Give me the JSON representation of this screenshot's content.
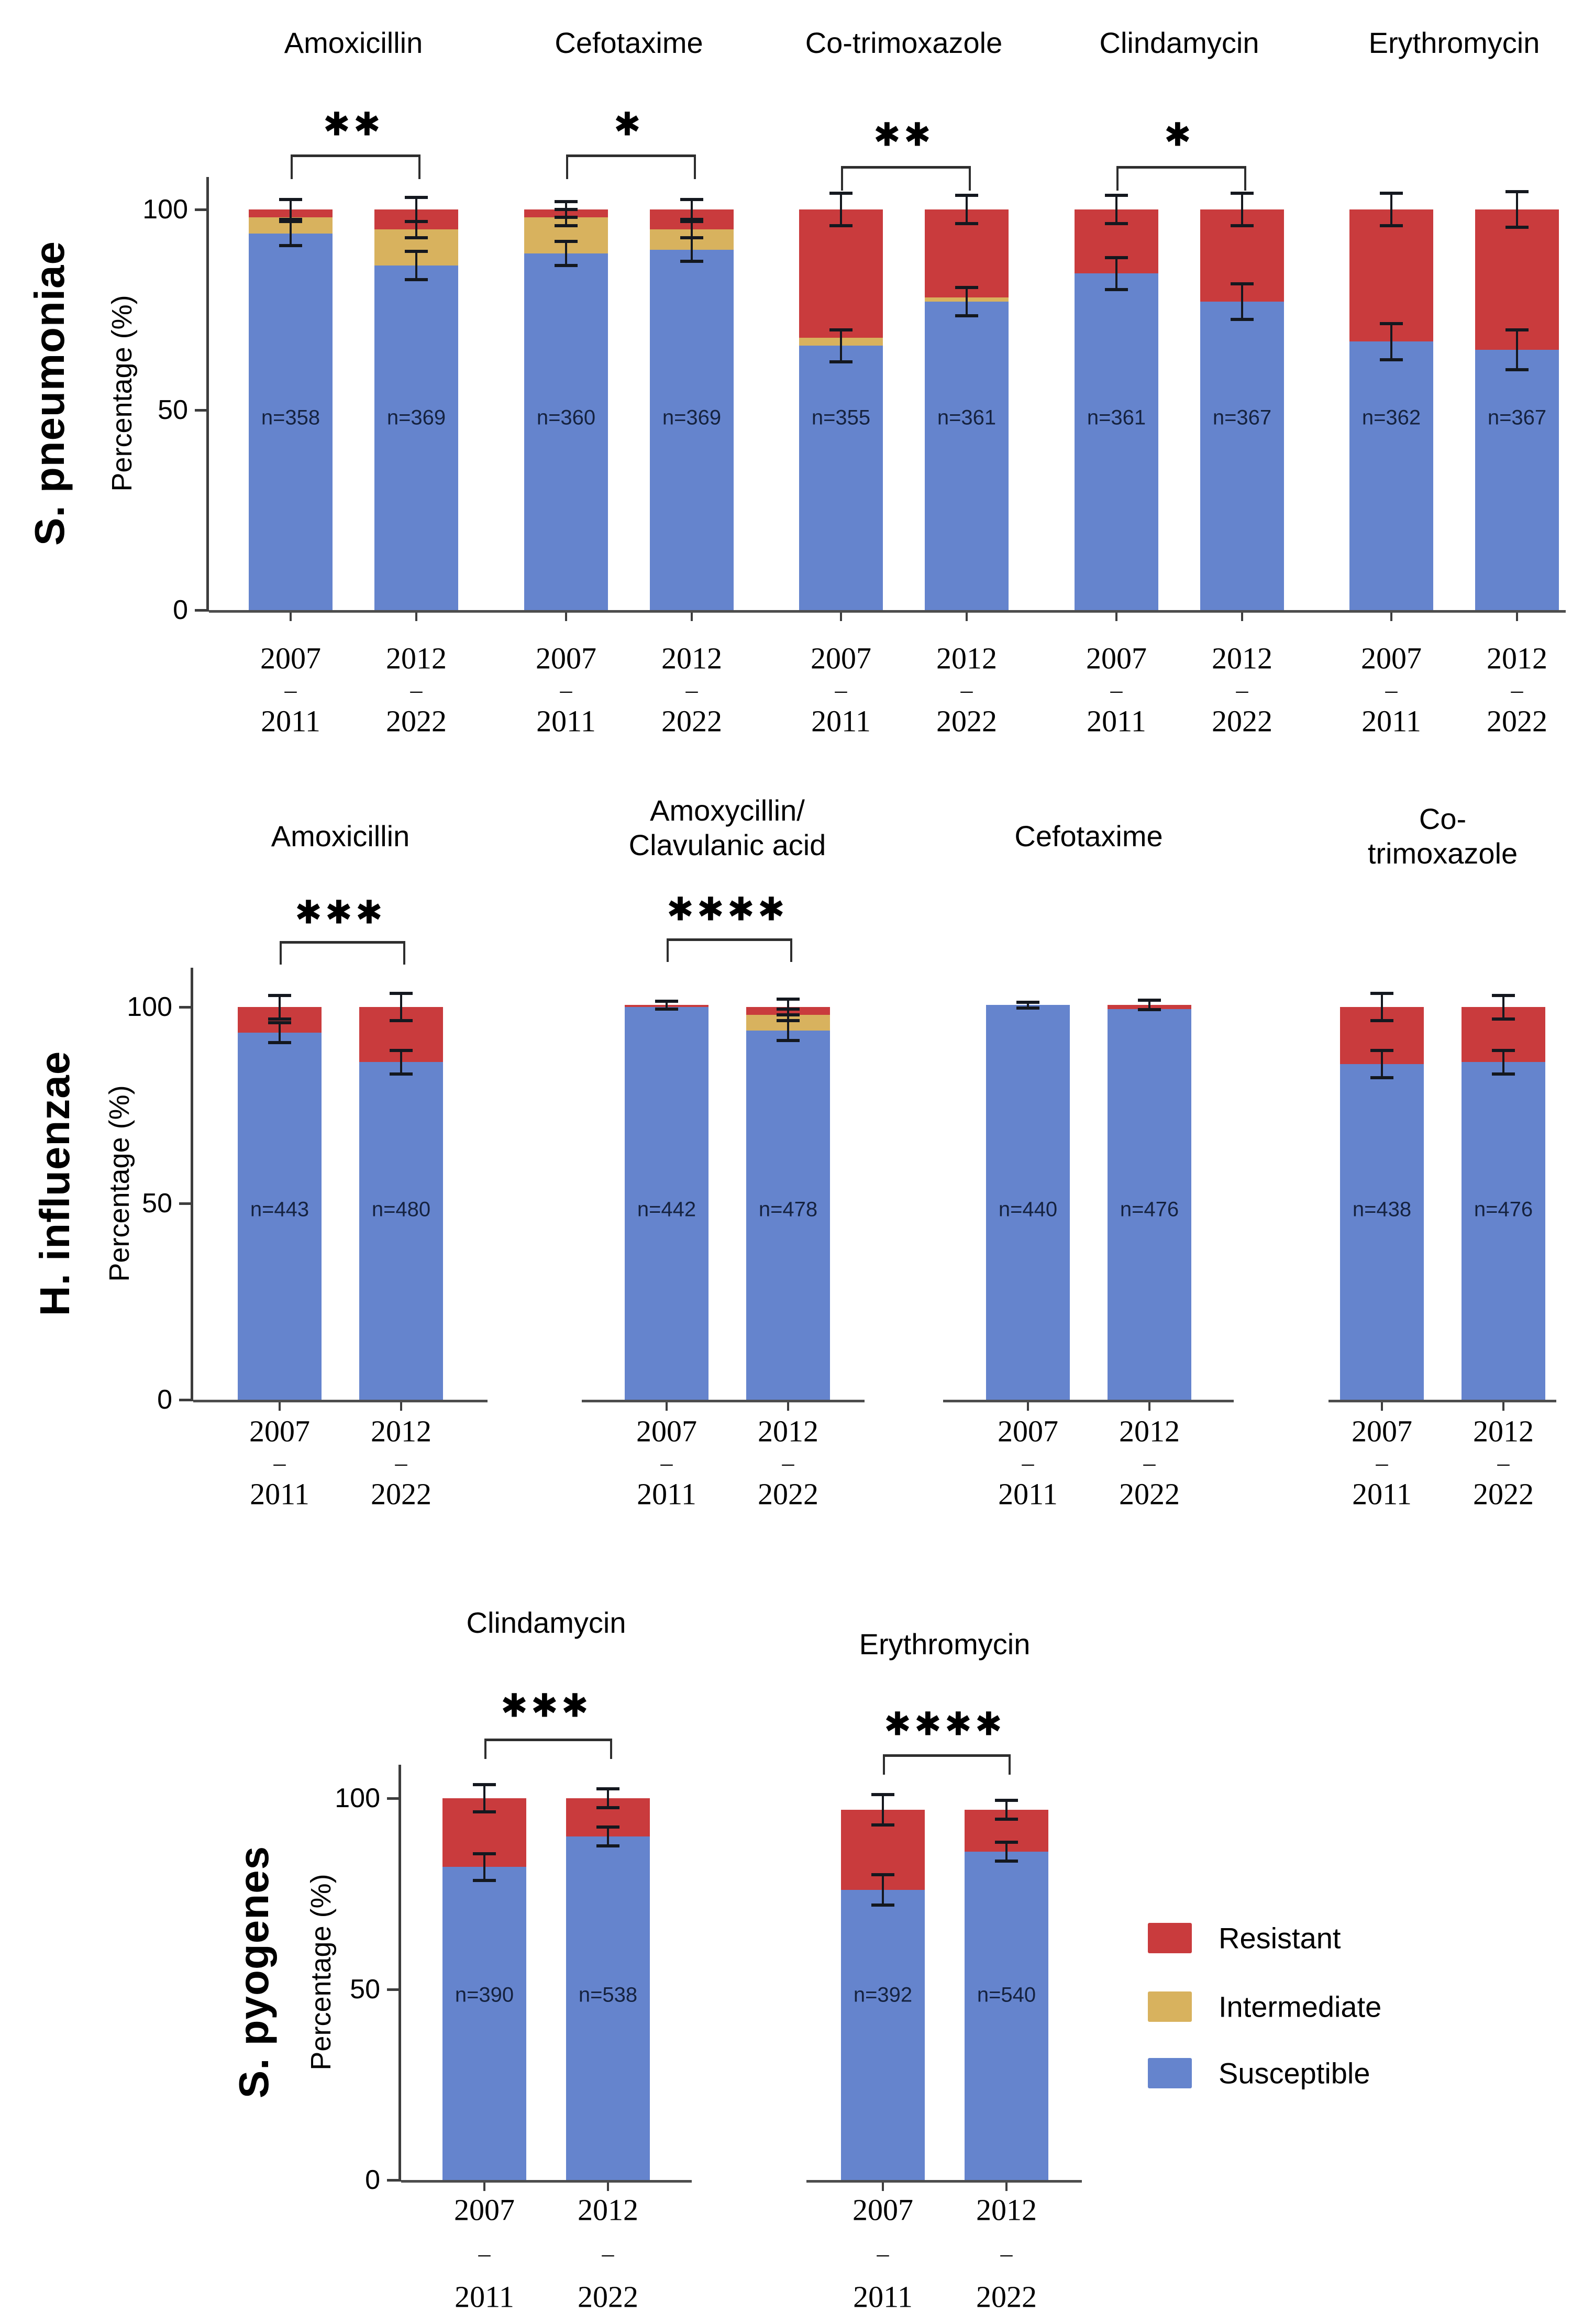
{
  "legend": {
    "items": [
      {
        "label": "Resistant",
        "color": "#c93b3d"
      },
      {
        "label": "Intermediate",
        "color": "#d8b25e"
      },
      {
        "label": "Susceptible",
        "color": "#6584cd"
      }
    ]
  },
  "colors": {
    "susceptible": "#6584cd",
    "intermediate": "#d8b25e",
    "resistant": "#c93b3d",
    "axis": "#3d3d3d",
    "error_bar": "#14181f",
    "n_label": "#15223f"
  },
  "chart_data": [
    {
      "type": "bar",
      "stacked": true,
      "species": "S. pneumoniae",
      "ylabel": "Percentage (%)",
      "yticks": [
        100,
        50,
        0
      ],
      "ylim": [
        0,
        112
      ],
      "grid": false,
      "legend_position": "none",
      "groups": [
        {
          "antibiotic": "Amoxicillin",
          "significance": "**",
          "bars": [
            {
              "period": [
                "2007",
                "–",
                "2011"
              ],
              "n_label": "n=358",
              "susceptible": 94,
              "intermediate": 4,
              "resistant": 2,
              "err_susceptible": 3,
              "err_top": 2.5
            },
            {
              "period": [
                "2012",
                "–",
                "2022"
              ],
              "n_label": "n=369",
              "susceptible": 86,
              "intermediate": 9,
              "resistant": 5,
              "err_susceptible": 3.5,
              "err_intermediate": 2,
              "err_top": 3
            }
          ]
        },
        {
          "antibiotic": "Cefotaxime",
          "significance": "*",
          "bars": [
            {
              "period": [
                "2007",
                "–",
                "2011"
              ],
              "n_label": "n=360",
              "susceptible": 89,
              "intermediate": 9,
              "resistant": 2,
              "err_susceptible": 3,
              "err_intermediate": 2,
              "err_top": 2
            },
            {
              "period": [
                "2012",
                "–",
                "2022"
              ],
              "n_label": "n=369",
              "susceptible": 90,
              "intermediate": 5,
              "resistant": 5,
              "err_susceptible": 3,
              "err_intermediate": 2,
              "err_top": 2.5
            }
          ]
        },
        {
          "antibiotic": "Co-trimoxazole",
          "significance": "**",
          "bars": [
            {
              "period": [
                "2007",
                "–",
                "2011"
              ],
              "n_label": "n=355",
              "susceptible": 66,
              "intermediate": 2,
              "resistant": 32,
              "err_susceptible": 4,
              "err_top": 4
            },
            {
              "period": [
                "2012",
                "–",
                "2022"
              ],
              "n_label": "n=361",
              "susceptible": 77,
              "intermediate": 1,
              "resistant": 22,
              "err_susceptible": 3.5,
              "err_top": 3.5
            }
          ]
        },
        {
          "antibiotic": "Clindamycin",
          "significance": "*",
          "bars": [
            {
              "period": [
                "2007",
                "–",
                "2011"
              ],
              "n_label": "n=361",
              "susceptible": 84,
              "intermediate": 0,
              "resistant": 16,
              "err_susceptible": 4,
              "err_top": 3.5
            },
            {
              "period": [
                "2012",
                "–",
                "2022"
              ],
              "n_label": "n=367",
              "susceptible": 77,
              "intermediate": 0,
              "resistant": 23,
              "err_susceptible": 4.5,
              "err_top": 4
            }
          ]
        },
        {
          "antibiotic": "Erythromycin",
          "significance": null,
          "bars": [
            {
              "period": [
                "2007",
                "–",
                "2011"
              ],
              "n_label": "n=362",
              "susceptible": 67,
              "intermediate": 0,
              "resistant": 33,
              "err_susceptible": 4.5,
              "err_top": 4
            },
            {
              "period": [
                "2012",
                "–",
                "2022"
              ],
              "n_label": "n=367",
              "susceptible": 65,
              "intermediate": 0,
              "resistant": 35,
              "err_susceptible": 5,
              "err_top": 4.5
            }
          ]
        }
      ]
    },
    {
      "type": "bar",
      "stacked": true,
      "species": "H. influenzae",
      "ylabel": "Percentage (%)",
      "yticks": [
        100,
        50,
        0
      ],
      "ylim": [
        0,
        112
      ],
      "grid": false,
      "legend_position": "none",
      "groups": [
        {
          "antibiotic": "Amoxicillin",
          "significance": "***",
          "bars": [
            {
              "period": [
                "2007",
                "–",
                "2011"
              ],
              "n_label": "n=443",
              "susceptible": 93.5,
              "intermediate": 0,
              "resistant": 6.5,
              "err_susceptible": 2.5,
              "err_top": 3
            },
            {
              "period": [
                "2012",
                "–",
                "2022"
              ],
              "n_label": "n=480",
              "susceptible": 86,
              "intermediate": 0,
              "resistant": 14,
              "err_susceptible": 3,
              "err_top": 3.5
            }
          ]
        },
        {
          "antibiotic": "Amoxycillin/ Clavulanic acid",
          "antibiotic_lines": [
            "Amoxycillin/",
            "Clavulanic acid"
          ],
          "significance": "****",
          "bars": [
            {
              "period": [
                "2007",
                "–",
                "2011"
              ],
              "n_label": "n=442",
              "susceptible": 100,
              "intermediate": 0,
              "resistant": 0.5,
              "err_top": 1
            },
            {
              "period": [
                "2012",
                "–",
                "2022"
              ],
              "n_label": "n=478",
              "susceptible": 94,
              "intermediate": 4,
              "resistant": 2,
              "err_susceptible": 2.5,
              "err_intermediate": 1.5,
              "err_top": 2
            }
          ]
        },
        {
          "antibiotic": "Cefotaxime",
          "significance": null,
          "bars": [
            {
              "period": [
                "2007",
                "–",
                "2011"
              ],
              "n_label": "n=440",
              "susceptible": 100.5,
              "intermediate": 0,
              "resistant": 0,
              "err_top": 0.7
            },
            {
              "period": [
                "2012",
                "–",
                "2022"
              ],
              "n_label": "n=476",
              "susceptible": 99.5,
              "intermediate": 0,
              "resistant": 1,
              "err_top": 1.2
            }
          ]
        },
        {
          "antibiotic": "Co-trimoxazole",
          "significance": null,
          "bars": [
            {
              "period": [
                "2007",
                "–",
                "2011"
              ],
              "n_label": "n=438",
              "susceptible": 85.5,
              "intermediate": 0,
              "resistant": 14.5,
              "err_susceptible": 3.5,
              "err_top": 3.5
            },
            {
              "period": [
                "2012",
                "–",
                "2022"
              ],
              "n_label": "n=476",
              "susceptible": 86,
              "intermediate": 0,
              "resistant": 14,
              "err_susceptible": 3,
              "err_top": 3
            }
          ]
        }
      ]
    },
    {
      "type": "bar",
      "stacked": true,
      "species": "S. pyogenes",
      "ylabel": "Percentage (%)",
      "yticks": [
        100,
        50,
        0
      ],
      "ylim": [
        0,
        112
      ],
      "grid": false,
      "legend_position": "right",
      "groups": [
        {
          "antibiotic": "Clindamycin",
          "significance": "***",
          "bars": [
            {
              "period": [
                "2007",
                "–",
                "2011"
              ],
              "n_label": "n=390",
              "susceptible": 82,
              "intermediate": 0,
              "resistant": 18,
              "err_susceptible": 3.5,
              "err_top": 3.5
            },
            {
              "period": [
                "2012",
                "–",
                "2022"
              ],
              "n_label": "n=538",
              "susceptible": 90,
              "intermediate": 0,
              "resistant": 10,
              "err_susceptible": 2.5,
              "err_top": 2.5
            }
          ]
        },
        {
          "antibiotic": "Erythromycin",
          "significance": "****",
          "bars": [
            {
              "period": [
                "2007",
                "–",
                "2011"
              ],
              "n_label": "n=392",
              "susceptible": 76,
              "intermediate": 0,
              "resistant": 21,
              "err_susceptible": 4,
              "err_top": 4
            },
            {
              "period": [
                "2012",
                "–",
                "2022"
              ],
              "n_label": "n=540",
              "susceptible": 86,
              "intermediate": 0,
              "resistant": 11,
              "err_susceptible": 2.5,
              "err_top": 2.5
            }
          ]
        }
      ]
    }
  ]
}
